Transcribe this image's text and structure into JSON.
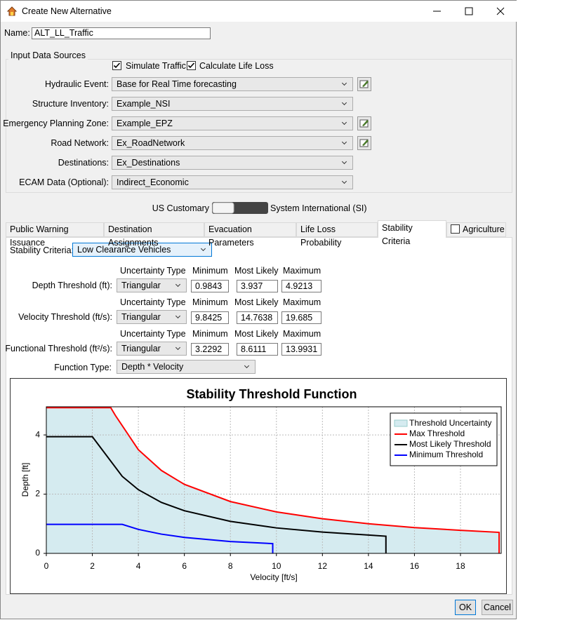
{
  "window": {
    "title": "Create New Alternative"
  },
  "name": {
    "label": "Name:",
    "value": "ALT_LL_Traffic"
  },
  "input_sources": {
    "title": "Input Data Sources",
    "simulate_traffic": "Simulate Traffic",
    "calculate_life_loss": "Calculate Life Loss",
    "rows": [
      {
        "label": "Hydraulic Event:",
        "value": "Base for Real Time forecasting",
        "editable": true
      },
      {
        "label": "Structure Inventory:",
        "value": "Example_NSI",
        "editable": false
      },
      {
        "label": "Emergency Planning Zone:",
        "value": "Example_EPZ",
        "editable": true
      },
      {
        "label": "Road Network:",
        "value": "Ex_RoadNetwork",
        "editable": true
      },
      {
        "label": "Destinations:",
        "value": "Ex_Destinations",
        "editable": false
      },
      {
        "label": "ECAM Data (Optional):",
        "value": "Indirect_Economic",
        "editable": false
      }
    ]
  },
  "units": {
    "left": "US Customary",
    "right": "System International (SI)"
  },
  "tabs": [
    "Public Warning Issuance",
    "Destination Assignments",
    "Evacuation Parameters",
    "Life Loss Probability",
    "Stability Criteria",
    "Agriculture"
  ],
  "stability": {
    "label": "Stability Criteria:",
    "value": "Low Clearance Vehicles",
    "headers": [
      "Uncertainty Type",
      "Minimum",
      "Most Likely",
      "Maximum"
    ],
    "rows": [
      {
        "label": "Depth Threshold (ft):",
        "type": "Triangular",
        "min": 0.9843,
        "likely": 3.937,
        "max": 4.9213
      },
      {
        "label": "Velocity Threshold (ft/s):",
        "type": "Triangular",
        "min": 9.8425,
        "likely": 14.7638,
        "max": 19.685
      },
      {
        "label": "Functional Threshold (ft²/s):",
        "type": "Triangular",
        "min": 3.2292,
        "likely": 8.6111,
        "max": 13.9931
      }
    ],
    "function_label": "Function Type:",
    "function_value": "Depth * Velocity"
  },
  "chart_data": {
    "type": "line",
    "title": "Stability Threshold Function",
    "x_label": "Velocity [ft/s]",
    "y_label": "Depth [ft]",
    "xlim": [
      0,
      19.77
    ],
    "ylim": [
      0,
      4.95
    ],
    "xticks": [
      0,
      2,
      4,
      6,
      8,
      10,
      12,
      14,
      16,
      18
    ],
    "yticks": [
      0,
      2,
      4
    ],
    "grid": true,
    "area": {
      "name": "Threshold Uncertainty",
      "color": "#d5ebf0"
    },
    "series": [
      {
        "name": "Max Threshold",
        "color": "#ff0000",
        "x": [
          0,
          2.8,
          3,
          4,
          5,
          6,
          8,
          10,
          12,
          14,
          16,
          18,
          19.68,
          19.68
        ],
        "values": [
          4.92,
          4.92,
          4.66,
          3.5,
          2.8,
          2.33,
          1.75,
          1.4,
          1.17,
          1.0,
          0.87,
          0.78,
          0.71,
          0
        ]
      },
      {
        "name": "Most Likely Threshold",
        "color": "#000000",
        "x": [
          0,
          2,
          3.3,
          4,
          5,
          6,
          8,
          10,
          12,
          14.76,
          14.76
        ],
        "values": [
          3.94,
          3.94,
          2.6,
          2.15,
          1.72,
          1.44,
          1.08,
          0.86,
          0.72,
          0.58,
          0
        ]
      },
      {
        "name": "Minimum Threshold",
        "color": "#0000ff",
        "x": [
          0,
          3.3,
          4,
          5,
          6,
          8,
          9.84,
          9.84
        ],
        "values": [
          0.98,
          0.98,
          0.81,
          0.65,
          0.54,
          0.4,
          0.33,
          0
        ]
      }
    ]
  },
  "buttons": {
    "ok": "OK",
    "cancel": "Cancel"
  }
}
